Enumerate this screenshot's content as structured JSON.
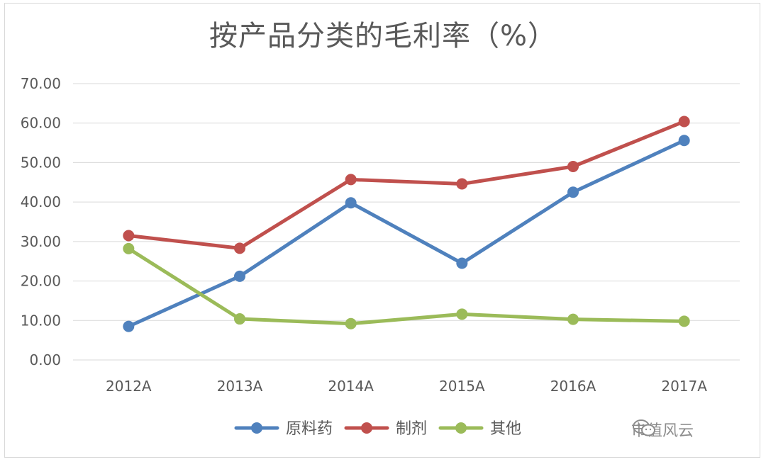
{
  "chart_data": {
    "type": "line",
    "title": "按产品分类的毛利率（%）",
    "categories": [
      "2012A",
      "2013A",
      "2014A",
      "2015A",
      "2016A",
      "2017A"
    ],
    "ylim": [
      0,
      70
    ],
    "yticks": [
      "0.00",
      "10.00",
      "20.00",
      "30.00",
      "40.00",
      "50.00",
      "60.00",
      "70.00"
    ],
    "grid": true,
    "legend_position": "bottom",
    "series": [
      {
        "name": "原料药",
        "color": "#4F81BD",
        "values": [
          8.5,
          21.2,
          39.8,
          24.5,
          42.5,
          55.6
        ]
      },
      {
        "name": "制剂",
        "color": "#C0504D",
        "values": [
          31.5,
          28.3,
          45.7,
          44.6,
          49.0,
          60.4
        ]
      },
      {
        "name": "其他",
        "color": "#9BBB59",
        "values": [
          28.2,
          10.4,
          9.2,
          11.6,
          10.3,
          9.8
        ]
      }
    ]
  },
  "watermark": {
    "text": "市值风云",
    "icon": "wechat-icon"
  }
}
